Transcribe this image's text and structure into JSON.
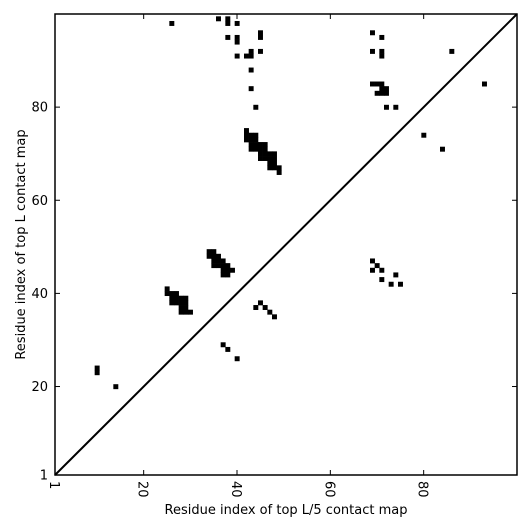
{
  "chart_data": {
    "type": "heatmap",
    "title": "",
    "xlabel": "Residue index of top L/5 contact map",
    "ylabel": "Residue index of top L contact map",
    "xlim": [
      1,
      100
    ],
    "ylim": [
      1,
      100
    ],
    "xticks": [
      1,
      20,
      40,
      60,
      80
    ],
    "yticks": [
      1,
      20,
      40,
      60,
      80
    ],
    "diagonal": true,
    "grid": false,
    "cell_color": "#000000",
    "upper_triangle_contacts": [
      [
        26,
        98
      ],
      [
        36,
        99
      ],
      [
        38,
        99
      ],
      [
        38,
        98
      ],
      [
        40,
        98
      ],
      [
        38,
        95
      ],
      [
        40,
        95
      ],
      [
        40,
        94
      ],
      [
        40,
        91
      ],
      [
        42,
        91
      ],
      [
        43,
        91
      ],
      [
        43,
        92
      ],
      [
        45,
        96
      ],
      [
        45,
        95
      ],
      [
        45,
        92
      ],
      [
        43,
        88
      ],
      [
        43,
        84
      ],
      [
        44,
        80
      ],
      [
        69,
        96
      ],
      [
        71,
        95
      ],
      [
        69,
        92
      ],
      [
        71,
        92
      ],
      [
        71,
        91
      ],
      [
        86,
        92
      ],
      [
        69,
        85
      ],
      [
        70,
        85
      ],
      [
        71,
        85
      ],
      [
        72,
        84
      ],
      [
        71,
        84
      ],
      [
        71,
        83
      ],
      [
        72,
        83
      ],
      [
        70,
        83
      ],
      [
        93,
        85
      ],
      [
        72,
        80
      ],
      [
        74,
        80
      ],
      [
        80,
        74
      ],
      [
        84,
        71
      ],
      [
        42,
        75
      ],
      [
        42,
        74
      ],
      [
        43,
        74
      ],
      [
        44,
        74
      ],
      [
        42,
        73
      ],
      [
        43,
        73
      ],
      [
        44,
        73
      ],
      [
        43,
        72
      ],
      [
        44,
        72
      ],
      [
        45,
        72
      ],
      [
        46,
        72
      ],
      [
        43,
        71
      ],
      [
        44,
        71
      ],
      [
        45,
        71
      ],
      [
        46,
        71
      ],
      [
        45,
        70
      ],
      [
        46,
        70
      ],
      [
        45,
        69
      ],
      [
        46,
        69
      ],
      [
        47,
        70
      ],
      [
        48,
        70
      ],
      [
        47,
        69
      ],
      [
        48,
        69
      ],
      [
        47,
        68
      ],
      [
        48,
        68
      ],
      [
        47,
        67
      ],
      [
        48,
        67
      ],
      [
        49,
        67
      ],
      [
        49,
        66
      ]
    ],
    "lower_triangle_contacts": [
      [
        10,
        24
      ],
      [
        10,
        23
      ],
      [
        14,
        20
      ],
      [
        25,
        41
      ],
      [
        25,
        40
      ],
      [
        26,
        40
      ],
      [
        27,
        40
      ],
      [
        26,
        39
      ],
      [
        27,
        39
      ],
      [
        28,
        39
      ],
      [
        29,
        39
      ],
      [
        26,
        38
      ],
      [
        27,
        38
      ],
      [
        28,
        38
      ],
      [
        29,
        38
      ],
      [
        28,
        37
      ],
      [
        29,
        37
      ],
      [
        28,
        36
      ],
      [
        29,
        36
      ],
      [
        30,
        36
      ],
      [
        34,
        49
      ],
      [
        35,
        49
      ],
      [
        34,
        48
      ],
      [
        35,
        48
      ],
      [
        36,
        48
      ],
      [
        35,
        47
      ],
      [
        36,
        47
      ],
      [
        37,
        47
      ],
      [
        35,
        46
      ],
      [
        36,
        46
      ],
      [
        37,
        46
      ],
      [
        38,
        46
      ],
      [
        37,
        45
      ],
      [
        38,
        45
      ],
      [
        39,
        45
      ],
      [
        37,
        44
      ],
      [
        38,
        44
      ],
      [
        44,
        37
      ],
      [
        45,
        38
      ],
      [
        46,
        37
      ],
      [
        47,
        36
      ],
      [
        48,
        35
      ],
      [
        37,
        29
      ],
      [
        38,
        28
      ],
      [
        40,
        26
      ],
      [
        69,
        47
      ],
      [
        70,
        46
      ],
      [
        69,
        45
      ],
      [
        71,
        45
      ],
      [
        71,
        43
      ],
      [
        73,
        42
      ],
      [
        75,
        42
      ],
      [
        74,
        44
      ]
    ]
  }
}
